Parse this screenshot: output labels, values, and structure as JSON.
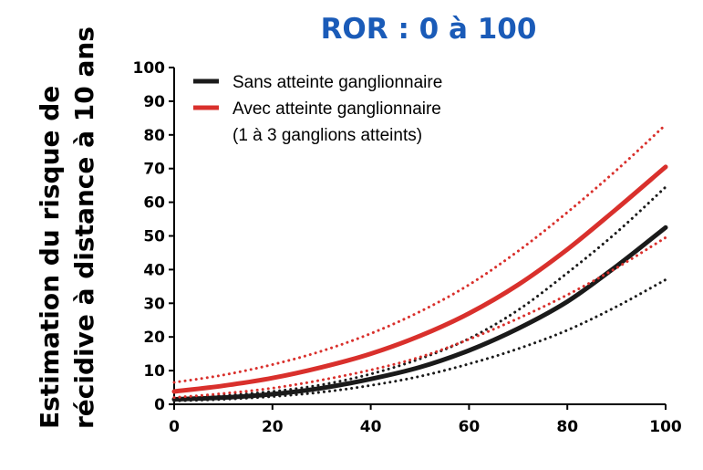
{
  "chart_data": {
    "type": "line",
    "title": "ROR : 0 à 100",
    "xlabel": "",
    "ylabel": [
      "Estimation du risque de",
      "récidive à distance à 10 ans"
    ],
    "xlim": [
      0,
      100
    ],
    "ylim": [
      0,
      100
    ],
    "xticks": [
      0,
      20,
      40,
      60,
      80,
      100
    ],
    "yticks": [
      0,
      10,
      20,
      30,
      40,
      50,
      60,
      70,
      80,
      90,
      100
    ],
    "grid": false,
    "legend": {
      "position": "top-left",
      "entries": [
        {
          "label": "Sans atteinte ganglionnaire",
          "color": "#1a1a1a"
        },
        {
          "label": "Avec atteinte ganglionnaire",
          "label2": "(1 à 3 ganglions atteints)",
          "color": "#d9302c"
        }
      ]
    },
    "x": [
      0,
      10,
      20,
      30,
      40,
      50,
      60,
      70,
      80,
      90,
      100
    ],
    "series": [
      {
        "name": "Sans atteinte ganglionnaire",
        "style": "solid",
        "color": "#1a1a1a",
        "values": [
          1.5,
          2.0,
          3.0,
          4.8,
          7.5,
          11.0,
          16.0,
          22.5,
          30.5,
          41.0,
          52.5
        ]
      },
      {
        "style": "dotted",
        "color": "#1a1a1a",
        "values": [
          2.0,
          2.6,
          3.8,
          5.8,
          9.0,
          13.5,
          19.5,
          28.0,
          39.0,
          51.0,
          64.5
        ]
      },
      {
        "style": "dotted",
        "color": "#1a1a1a",
        "values": [
          1.0,
          1.5,
          2.3,
          3.6,
          5.6,
          8.3,
          12.0,
          16.5,
          22.0,
          29.0,
          37.0
        ]
      },
      {
        "name": "Avec atteinte ganglionnaire",
        "style": "solid",
        "color": "#d9302c",
        "values": [
          3.8,
          5.5,
          7.8,
          11.0,
          15.0,
          20.3,
          27.0,
          35.5,
          46.0,
          58.0,
          70.5
        ]
      },
      {
        "style": "dotted",
        "color": "#d9302c",
        "values": [
          6.5,
          8.7,
          11.8,
          15.8,
          21.0,
          27.5,
          35.5,
          45.5,
          57.0,
          69.5,
          83.0
        ]
      },
      {
        "style": "dotted",
        "color": "#d9302c",
        "values": [
          2.0,
          3.2,
          4.8,
          7.2,
          10.2,
          14.0,
          19.3,
          25.5,
          32.5,
          40.5,
          49.5
        ]
      }
    ]
  }
}
